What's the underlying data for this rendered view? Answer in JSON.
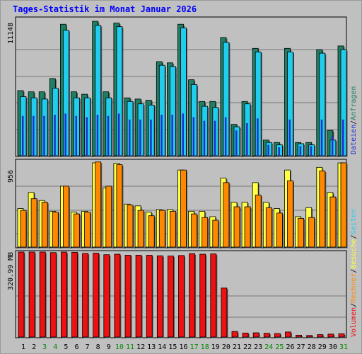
{
  "title": "Tages-Statistik im Monat Januar 2026",
  "colors": {
    "anfragen": "#1f7f62",
    "dateien": "#1e2fd0",
    "seiten": "#22ccee",
    "besuche": "#ffff44",
    "rechner": "#ff8800",
    "volumen": "#ee1111",
    "weekend_label": "#008800",
    "weekday_label": "#000000"
  },
  "chart_data": [
    {
      "type": "bar",
      "categories": [
        "1",
        "2",
        "3",
        "4",
        "5",
        "6",
        "7",
        "8",
        "9",
        "10",
        "11",
        "12",
        "13",
        "14",
        "15",
        "16",
        "17",
        "18",
        "19",
        "20",
        "21",
        "22",
        "23",
        "24",
        "25",
        "26",
        "27",
        "28",
        "29",
        "30",
        "31"
      ],
      "weekend_days": [
        "3",
        "4",
        "10",
        "11",
        "17",
        "18",
        "24",
        "25",
        "31"
      ],
      "ymax_label": "11148",
      "ylim": [
        0,
        11148
      ],
      "legend": [
        "Anfragen",
        "Dateien",
        "Seiten"
      ],
      "legend_separator": "/",
      "series": [
        {
          "name": "Anfragen",
          "values": [
            5400,
            5300,
            5300,
            6400,
            10900,
            5300,
            5100,
            11148,
            5300,
            11000,
            4800,
            4700,
            4600,
            7800,
            7700,
            10900,
            6300,
            4500,
            4500,
            9800,
            2600,
            4500,
            8900,
            1300,
            1100,
            8900,
            1100,
            1100,
            8800,
            2100,
            9100
          ]
        },
        {
          "name": "Dateien",
          "values": [
            3300,
            3300,
            3300,
            3400,
            3500,
            3300,
            3200,
            3400,
            3300,
            3500,
            3000,
            3000,
            3000,
            3400,
            3400,
            3500,
            3200,
            2900,
            2900,
            3200,
            2100,
            2700,
            3100,
            900,
            700,
            3000,
            800,
            800,
            3000,
            1600,
            3000
          ]
        },
        {
          "name": "Seiten",
          "values": [
            4900,
            4800,
            4700,
            5600,
            10400,
            4800,
            4800,
            10800,
            4800,
            10700,
            4500,
            4300,
            4200,
            7500,
            7400,
            10600,
            5900,
            4100,
            4000,
            9400,
            2400,
            4300,
            8600,
            1100,
            900,
            8600,
            1000,
            900,
            8500,
            1300,
            8800
          ]
        }
      ]
    },
    {
      "type": "bar",
      "categories": [
        "1",
        "2",
        "3",
        "4",
        "5",
        "6",
        "7",
        "8",
        "9",
        "10",
        "11",
        "12",
        "13",
        "14",
        "15",
        "16",
        "17",
        "18",
        "19",
        "20",
        "21",
        "22",
        "23",
        "24",
        "25",
        "26",
        "27",
        "28",
        "29",
        "30",
        "31"
      ],
      "ymax_label": "956",
      "ylim": [
        0,
        956
      ],
      "legend": [
        "Besuche",
        "Rechner"
      ],
      "series": [
        {
          "name": "Besuche",
          "values": [
            430,
            610,
            520,
            400,
            680,
            390,
            400,
            940,
            660,
            935,
            480,
            460,
            390,
            420,
            420,
            860,
            400,
            400,
            340,
            770,
            500,
            500,
            720,
            500,
            430,
            860,
            340,
            440,
            890,
            610,
            940
          ]
        },
        {
          "name": "Rechner",
          "values": [
            410,
            540,
            500,
            390,
            680,
            370,
            390,
            950,
            680,
            920,
            470,
            410,
            350,
            410,
            400,
            860,
            370,
            330,
            300,
            720,
            450,
            450,
            580,
            440,
            380,
            740,
            320,
            330,
            850,
            560,
            940
          ]
        }
      ]
    },
    {
      "type": "bar",
      "categories": [
        "1",
        "2",
        "3",
        "4",
        "5",
        "6",
        "7",
        "8",
        "9",
        "10",
        "11",
        "12",
        "13",
        "14",
        "15",
        "16",
        "17",
        "18",
        "19",
        "20",
        "21",
        "22",
        "23",
        "24",
        "25",
        "26",
        "27",
        "28",
        "29",
        "30",
        "31"
      ],
      "ymax_label": "320.99 MB",
      "ylim": [
        0,
        320.99
      ],
      "legend": [
        "Volumen",
        "Rechner",
        "Besuche",
        "Seiten",
        "Dateien",
        "Anfragen"
      ],
      "series": [
        {
          "name": "Volumen",
          "values": [
            321,
            321,
            321,
            319,
            321,
            320,
            316,
            317,
            311,
            313,
            309,
            309,
            309,
            307,
            306,
            308,
            315,
            313,
            314,
            185,
            21,
            15,
            16,
            14,
            13,
            19,
            7,
            6,
            9,
            11,
            12
          ]
        }
      ]
    }
  ]
}
